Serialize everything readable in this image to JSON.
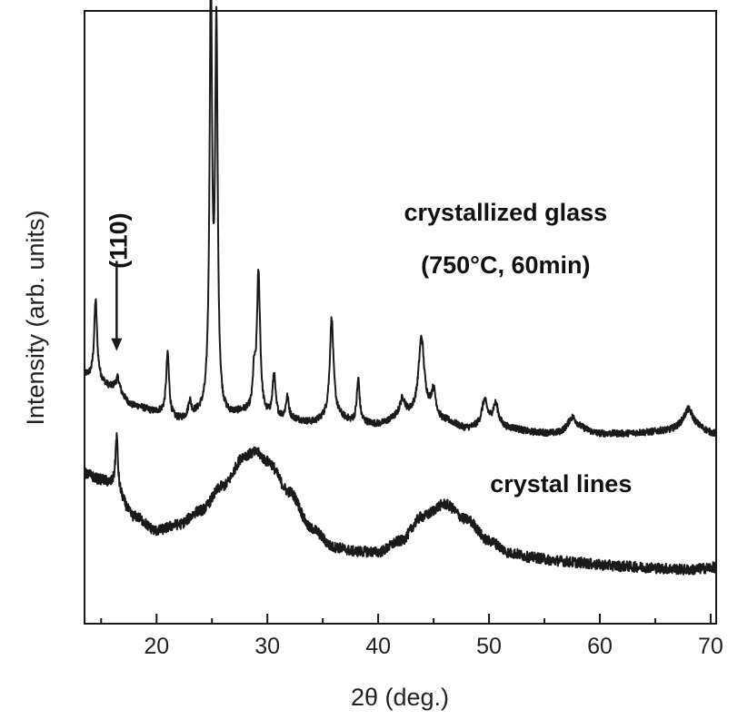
{
  "chart_data": {
    "type": "line",
    "title": "",
    "xlabel": "2θ (deg.)",
    "ylabel": "Intensity (arb. units)",
    "xlim": [
      13.5,
      70.5
    ],
    "ylim": [
      0,
      100
    ],
    "x_ticks": [
      20,
      30,
      40,
      50,
      60,
      70
    ],
    "x_tick_labels": [
      "20",
      "30",
      "40",
      "50",
      "60",
      "70"
    ],
    "x_minor_ticks": [
      15,
      25,
      35,
      45,
      55,
      65
    ],
    "y_tick_labels": false,
    "grid": false,
    "line_color": "#1a1a1a",
    "series": [
      {
        "name": "crystallized glass",
        "baseline": [
          [
            13.5,
            40.5
          ],
          [
            14.5,
            39.8
          ],
          [
            16,
            38.5
          ],
          [
            18,
            35.5
          ],
          [
            20,
            34.5
          ],
          [
            22,
            33.2
          ],
          [
            24,
            34
          ],
          [
            26,
            33.5
          ],
          [
            28,
            34.3
          ],
          [
            30,
            33.5
          ],
          [
            32,
            33.3
          ],
          [
            34,
            32.8
          ],
          [
            36,
            33.8
          ],
          [
            38,
            32.8
          ],
          [
            40,
            32.5
          ],
          [
            42,
            33.5
          ],
          [
            44,
            34.5
          ],
          [
            46,
            33
          ],
          [
            48,
            31.8
          ],
          [
            50,
            32.3
          ],
          [
            52,
            31.8
          ],
          [
            54,
            31.2
          ],
          [
            56,
            31
          ],
          [
            58,
            31.8
          ],
          [
            60,
            31
          ],
          [
            62,
            31
          ],
          [
            64,
            31.2
          ],
          [
            66,
            31.5
          ],
          [
            68,
            32.5
          ],
          [
            70.5,
            31
          ]
        ],
        "peaks": [
          {
            "x": 14.5,
            "height": 13,
            "width": 0.16
          },
          {
            "x": 16.5,
            "height": 2,
            "width": 0.2
          },
          {
            "x": 21.0,
            "height": 10,
            "width": 0.16
          },
          {
            "x": 23.0,
            "height": 2.5,
            "width": 0.15
          },
          {
            "x": 24.9,
            "height": 69,
            "width": 0.14
          },
          {
            "x": 25.4,
            "height": 62,
            "width": 0.14
          },
          {
            "x": 28.8,
            "height": 5.5,
            "width": 0.14
          },
          {
            "x": 29.2,
            "height": 23,
            "width": 0.18
          },
          {
            "x": 30.6,
            "height": 7,
            "width": 0.16
          },
          {
            "x": 31.8,
            "height": 3.5,
            "width": 0.16
          },
          {
            "x": 35.8,
            "height": 16,
            "width": 0.2
          },
          {
            "x": 38.2,
            "height": 7,
            "width": 0.15
          },
          {
            "x": 42.2,
            "height": 3,
            "width": 0.3
          },
          {
            "x": 43.9,
            "height": 12,
            "width": 0.3
          },
          {
            "x": 45.0,
            "height": 4,
            "width": 0.25
          },
          {
            "x": 49.6,
            "height": 4,
            "width": 0.3
          },
          {
            "x": 50.6,
            "height": 3.5,
            "width": 0.3
          },
          {
            "x": 57.5,
            "height": 2,
            "width": 0.45
          },
          {
            "x": 68.0,
            "height": 2.5,
            "width": 0.45
          }
        ],
        "noise_amplitude": 0.55
      },
      {
        "name": "crystal lines",
        "baseline": [
          [
            13.5,
            24.5
          ],
          [
            15,
            23.5
          ],
          [
            16,
            22.8
          ],
          [
            18,
            17.5
          ],
          [
            20,
            15.2
          ],
          [
            22,
            16.2
          ],
          [
            24,
            18.5
          ],
          [
            26,
            22.5
          ],
          [
            28,
            27.5
          ],
          [
            29,
            28
          ],
          [
            30,
            26.5
          ],
          [
            32,
            21.5
          ],
          [
            34,
            15.5
          ],
          [
            36,
            12.5
          ],
          [
            38,
            11.8
          ],
          [
            40,
            11.7
          ],
          [
            42,
            13.5
          ],
          [
            44,
            17.5
          ],
          [
            46,
            19.5
          ],
          [
            48,
            17
          ],
          [
            50,
            13.5
          ],
          [
            52,
            11.5
          ],
          [
            54,
            10.8
          ],
          [
            56,
            10.3
          ],
          [
            58,
            10
          ],
          [
            60,
            9.6
          ],
          [
            62,
            9.4
          ],
          [
            64,
            9.2
          ],
          [
            66,
            9
          ],
          [
            68,
            8.8
          ],
          [
            70.5,
            9.2
          ]
        ],
        "peaks": [
          {
            "x": 16.4,
            "height": 8.5,
            "width": 0.12
          }
        ],
        "noise_amplitude": 0.85
      }
    ],
    "annotations": [
      {
        "text": "crystallized glass",
        "x": 51.5,
        "y": 65.8
      },
      {
        "text": "(750°C, 60min)",
        "x": 51.5,
        "y": 57.2
      },
      {
        "text": "crystal lines",
        "x": 56.5,
        "y": 21.5
      },
      {
        "text": "(110)",
        "x": 17.3,
        "y": 62.5,
        "rotation": -90,
        "arrow_from_y": 59.2,
        "arrow_to_y": 44.5,
        "arrow_x": 16.4
      }
    ]
  }
}
